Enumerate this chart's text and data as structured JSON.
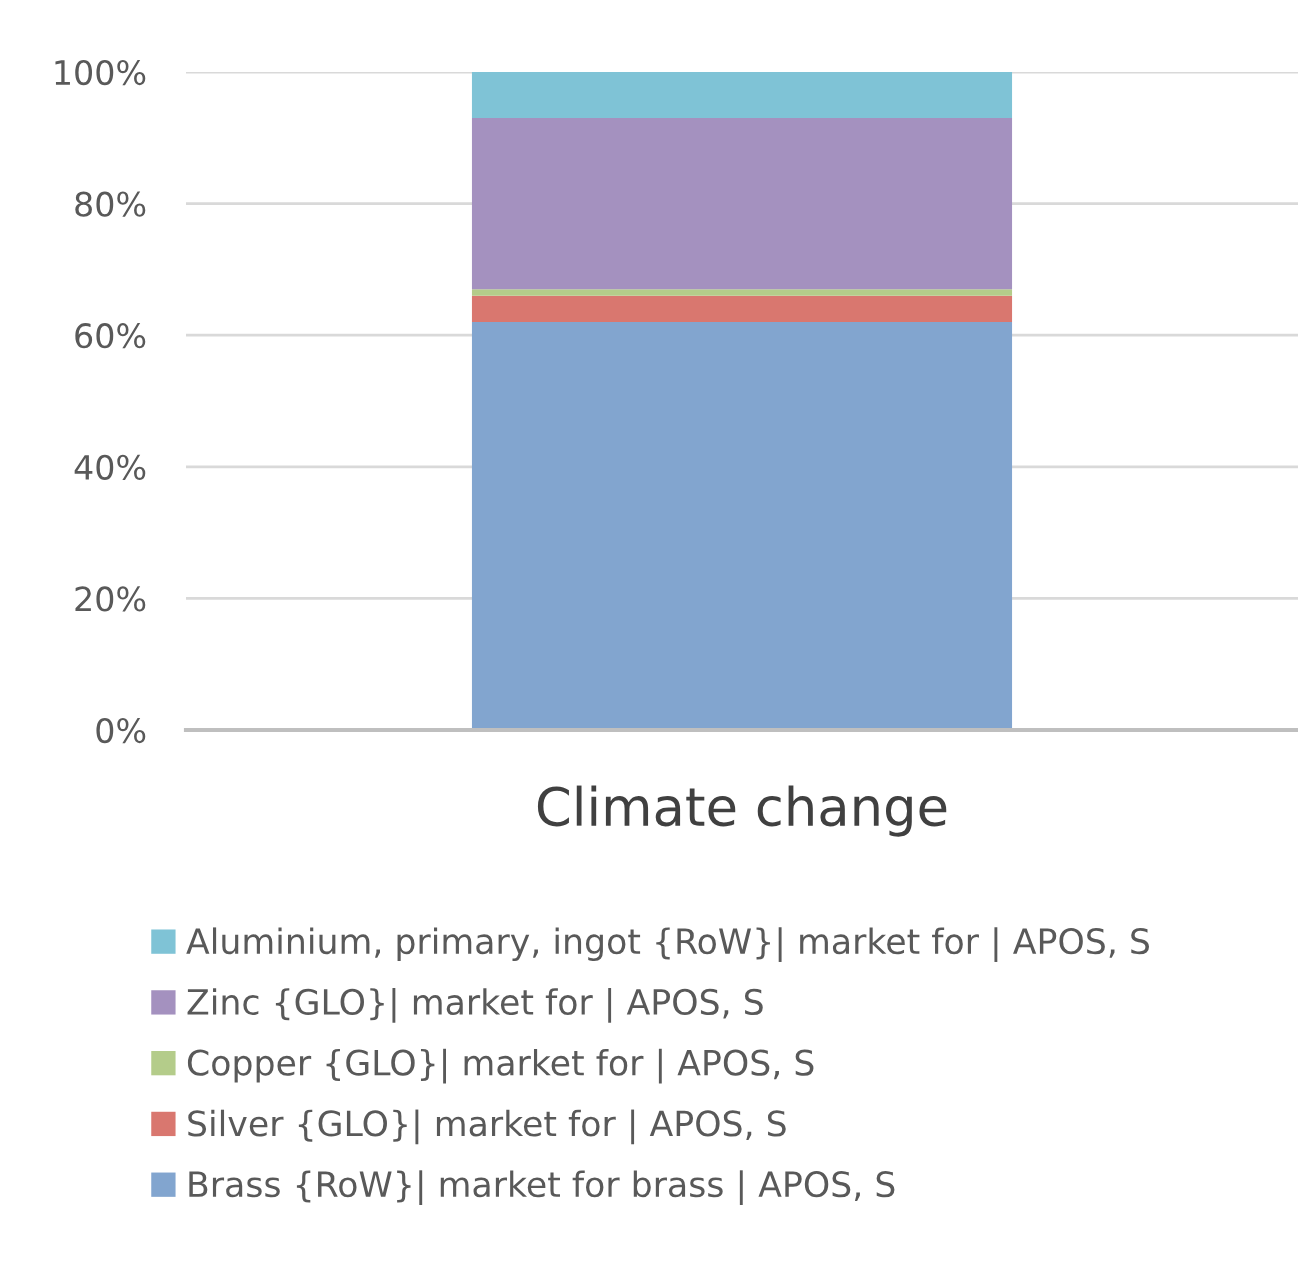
{
  "chart_data": {
    "type": "bar",
    "stacked": true,
    "categories": [
      "Climate change"
    ],
    "series": [
      {
        "name": "Brass {RoW}| market for brass | APOS, S",
        "color": "#82a5cf",
        "values": [
          62
        ]
      },
      {
        "name": "Silver {GLO}| market for | APOS, S",
        "color": "#d9776f",
        "values": [
          4
        ]
      },
      {
        "name": "Copper {GLO}| market for | APOS, S",
        "color": "#b4cc8a",
        "values": [
          1
        ]
      },
      {
        "name": "Zinc {GLO}| market for | APOS, S",
        "color": "#a491bf",
        "values": [
          26
        ]
      },
      {
        "name": "Aluminium, primary, ingot {RoW}| market for | APOS, S",
        "color": "#7fc3d6",
        "values": [
          7
        ]
      }
    ],
    "ylim": [
      0,
      100
    ],
    "yticks": [
      {
        "value": 0,
        "label": "0%"
      },
      {
        "value": 20,
        "label": "20%"
      },
      {
        "value": 40,
        "label": "40%"
      },
      {
        "value": 60,
        "label": "60%"
      },
      {
        "value": 80,
        "label": "80%"
      },
      {
        "value": 100,
        "label": "100%"
      }
    ],
    "grid": "y",
    "legend": "bottom"
  }
}
